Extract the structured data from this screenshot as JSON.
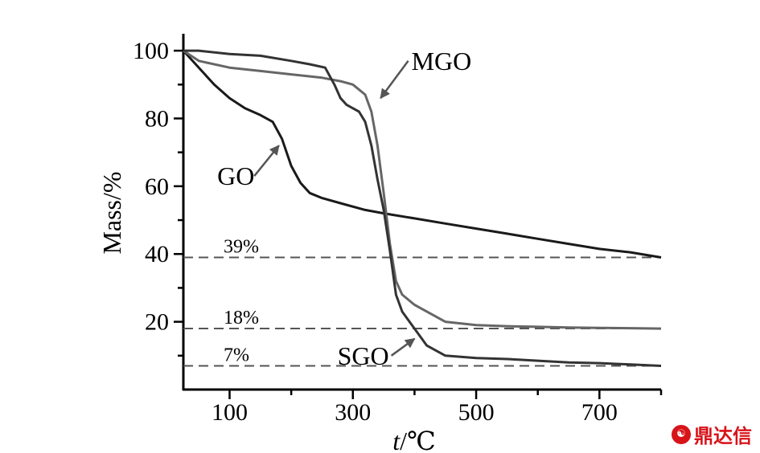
{
  "chart_data": {
    "type": "line",
    "xlabel_italic": "t",
    "xlabel_unit": "/℃",
    "ylabel": "Mass/%",
    "xlim": [
      25,
      800
    ],
    "ylim": [
      0,
      105
    ],
    "x_ticks": [
      100,
      300,
      500,
      700
    ],
    "y_ticks": [
      20,
      40,
      60,
      80,
      100
    ],
    "grid": false,
    "series": [
      {
        "name": "GO",
        "color": "#1a1a1a",
        "x": [
          25,
          50,
          75,
          100,
          125,
          150,
          170,
          185,
          200,
          215,
          230,
          250,
          280,
          320,
          350,
          400,
          450,
          500,
          550,
          600,
          650,
          700,
          750,
          800
        ],
        "y": [
          100,
          95,
          90,
          86,
          83,
          81,
          79,
          74,
          66,
          61,
          58,
          56.5,
          55,
          53,
          52,
          50.5,
          49,
          47.5,
          46,
          44.5,
          43,
          41.5,
          40.5,
          39
        ]
      },
      {
        "name": "MGO",
        "color": "#666666",
        "x": [
          25,
          50,
          100,
          150,
          200,
          250,
          280,
          300,
          320,
          330,
          340,
          350,
          360,
          370,
          380,
          400,
          450,
          500,
          550,
          600,
          650,
          700,
          750,
          800
        ],
        "y": [
          100,
          97,
          95,
          94,
          93,
          92,
          91,
          90,
          87,
          82,
          72,
          58,
          43,
          32,
          28,
          25,
          20,
          19,
          18.7,
          18.5,
          18.3,
          18.2,
          18.1,
          18
        ]
      },
      {
        "name": "SGO",
        "color": "#333333",
        "x": [
          25,
          50,
          100,
          150,
          200,
          230,
          255,
          270,
          280,
          290,
          300,
          310,
          320,
          330,
          340,
          350,
          360,
          370,
          380,
          400,
          420,
          450,
          500,
          550,
          600,
          650,
          700,
          750,
          800
        ],
        "y": [
          100,
          100,
          99,
          98.5,
          97,
          96,
          95,
          90,
          86,
          84,
          83,
          82,
          79,
          72,
          62,
          53,
          41,
          28,
          23,
          18,
          13,
          10,
          9.3,
          9,
          8.5,
          8,
          7.8,
          7.4,
          7
        ]
      }
    ],
    "reference_lines": [
      {
        "y": 39,
        "label": "39%"
      },
      {
        "y": 18,
        "label": "18%"
      },
      {
        "y": 7,
        "label": "7%"
      }
    ],
    "annotations": [
      {
        "text": "MGO",
        "x": 395,
        "y": 97,
        "arrow_to": [
          345,
          86
        ]
      },
      {
        "text": "GO",
        "x": 80,
        "y": 63,
        "arrow_to": [
          180,
          72
        ]
      },
      {
        "text": "SGO",
        "x": 275,
        "y": 10,
        "arrow_to": [
          400,
          15
        ]
      }
    ]
  },
  "watermark": {
    "icon": "seal-icon",
    "text": "鼎达信",
    "color": "#d7141a"
  }
}
